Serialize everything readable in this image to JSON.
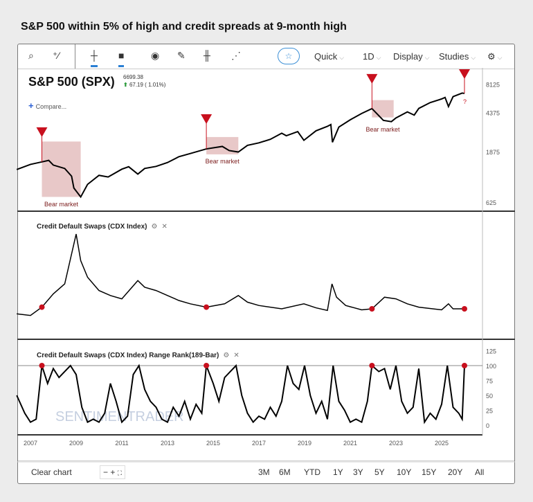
{
  "page_title": "S&P 500 within 5% of high and credit spreads at 9-month high",
  "toolbar": {
    "quick": "Quick",
    "interval": "1D",
    "display": "Display",
    "studies": "Studies"
  },
  "header": {
    "symbol": "S&P 500 (SPX)",
    "price": "6699.38",
    "change": "67.19 ( 1.01%)",
    "compare": "Compare..."
  },
  "panels": {
    "cdx_label": "Credit Default Swaps (CDX Index)",
    "rank_label": "Credit Default Swaps (CDX Index) Range Rank(189-Bar)"
  },
  "bottom": {
    "clear": "Clear chart",
    "zoom_out": "−",
    "zoom_in": "+",
    "ranges": [
      "3M",
      "6M",
      "YTD",
      "1Y",
      "3Y",
      "5Y",
      "10Y",
      "15Y",
      "20Y",
      "All"
    ]
  },
  "watermark": "SENTIMENTRADER",
  "colors": {
    "signal": "#c8101e",
    "bear": "#e8c8c8",
    "line": "#000000",
    "accent": "#2a7fd4"
  },
  "chart_data": [
    {
      "type": "line",
      "title": "S&P 500 (SPX)",
      "scale": "log",
      "yticks": [
        625,
        1875,
        4375,
        8125
      ],
      "series": [
        [
          2006.4,
          1270
        ],
        [
          2007.0,
          1420
        ],
        [
          2007.5,
          1500
        ],
        [
          2007.8,
          1550
        ],
        [
          2008.0,
          1400
        ],
        [
          2008.5,
          1300
        ],
        [
          2008.8,
          1100
        ],
        [
          2008.9,
          850
        ],
        [
          2009.2,
          700
        ],
        [
          2009.5,
          920
        ],
        [
          2010.0,
          1120
        ],
        [
          2010.4,
          1080
        ],
        [
          2011.0,
          1280
        ],
        [
          2011.3,
          1350
        ],
        [
          2011.7,
          1150
        ],
        [
          2012.0,
          1300
        ],
        [
          2012.5,
          1360
        ],
        [
          2013.0,
          1480
        ],
        [
          2013.5,
          1680
        ],
        [
          2014.0,
          1800
        ],
        [
          2014.7,
          1990
        ],
        [
          2015.4,
          2100
        ],
        [
          2015.7,
          1920
        ],
        [
          2016.1,
          1860
        ],
        [
          2016.5,
          2150
        ],
        [
          2017.0,
          2270
        ],
        [
          2017.5,
          2450
        ],
        [
          2018.0,
          2800
        ],
        [
          2018.2,
          2650
        ],
        [
          2018.7,
          2900
        ],
        [
          2018.97,
          2400
        ],
        [
          2019.5,
          2950
        ],
        [
          2020.0,
          3250
        ],
        [
          2020.15,
          3380
        ],
        [
          2020.22,
          2300
        ],
        [
          2020.5,
          3200
        ],
        [
          2021.0,
          3750
        ],
        [
          2021.5,
          4300
        ],
        [
          2021.95,
          4780
        ],
        [
          2022.45,
          3700
        ],
        [
          2022.8,
          3600
        ],
        [
          2023.0,
          3900
        ],
        [
          2023.5,
          4450
        ],
        [
          2023.8,
          4150
        ],
        [
          2024.0,
          4800
        ],
        [
          2024.5,
          5450
        ],
        [
          2025.0,
          5900
        ],
        [
          2025.15,
          6100
        ],
        [
          2025.3,
          5000
        ],
        [
          2025.5,
          6200
        ],
        [
          2025.9,
          6700
        ],
        [
          2026.0,
          6650
        ]
      ],
      "signals": [
        2007.5,
        2014.7,
        2021.95,
        2026.0
      ],
      "signal_pending_label": "?",
      "bear_markets": [
        {
          "from": 2007.5,
          "to": 2009.2,
          "label": "Bear market"
        },
        {
          "from": 2014.7,
          "to": 2016.1,
          "label": "Bear market"
        },
        {
          "from": 2021.95,
          "to": 2022.9,
          "label": "Bear market"
        }
      ]
    },
    {
      "type": "line",
      "title": "Credit Default Swaps (CDX Index)",
      "series": [
        [
          2006.4,
          40
        ],
        [
          2007.0,
          35
        ],
        [
          2007.5,
          60
        ],
        [
          2008.0,
          100
        ],
        [
          2008.5,
          130
        ],
        [
          2008.9,
          250
        ],
        [
          2009.0,
          280
        ],
        [
          2009.2,
          200
        ],
        [
          2009.5,
          150
        ],
        [
          2010.0,
          110
        ],
        [
          2010.5,
          95
        ],
        [
          2011.0,
          85
        ],
        [
          2011.7,
          140
        ],
        [
          2012.0,
          120
        ],
        [
          2012.5,
          110
        ],
        [
          2013.0,
          95
        ],
        [
          2013.5,
          80
        ],
        [
          2014.0,
          70
        ],
        [
          2014.7,
          60
        ],
        [
          2015.5,
          70
        ],
        [
          2016.1,
          95
        ],
        [
          2016.5,
          75
        ],
        [
          2017.0,
          65
        ],
        [
          2018.0,
          55
        ],
        [
          2018.97,
          70
        ],
        [
          2019.5,
          58
        ],
        [
          2020.0,
          50
        ],
        [
          2020.2,
          130
        ],
        [
          2020.4,
          90
        ],
        [
          2020.8,
          65
        ],
        [
          2021.5,
          52
        ],
        [
          2021.95,
          55
        ],
        [
          2022.5,
          90
        ],
        [
          2023.0,
          85
        ],
        [
          2023.5,
          70
        ],
        [
          2024.0,
          60
        ],
        [
          2025.0,
          52
        ],
        [
          2025.3,
          70
        ],
        [
          2025.5,
          55
        ],
        [
          2026.0,
          55
        ]
      ],
      "signals": [
        2007.5,
        2014.7,
        2021.95,
        2026.0
      ]
    },
    {
      "type": "line",
      "title": "Range Rank(189-Bar)",
      "ylim": [
        0,
        125
      ],
      "yticks": [
        0,
        25,
        50,
        75,
        100,
        125
      ],
      "threshold": 100,
      "series": [
        [
          2006.4,
          50
        ],
        [
          2006.75,
          20
        ],
        [
          2007,
          5
        ],
        [
          2007.25,
          10
        ],
        [
          2007.5,
          100
        ],
        [
          2007.75,
          70
        ],
        [
          2008,
          95
        ],
        [
          2008.25,
          80
        ],
        [
          2008.5,
          90
        ],
        [
          2008.75,
          100
        ],
        [
          2009,
          85
        ],
        [
          2009.25,
          30
        ],
        [
          2009.5,
          5
        ],
        [
          2009.75,
          10
        ],
        [
          2010,
          5
        ],
        [
          2010.25,
          20
        ],
        [
          2010.5,
          70
        ],
        [
          2010.75,
          40
        ],
        [
          2011,
          5
        ],
        [
          2011.25,
          15
        ],
        [
          2011.5,
          85
        ],
        [
          2011.75,
          100
        ],
        [
          2012,
          60
        ],
        [
          2012.25,
          40
        ],
        [
          2012.5,
          30
        ],
        [
          2012.75,
          10
        ],
        [
          2013,
          5
        ],
        [
          2013.25,
          30
        ],
        [
          2013.5,
          15
        ],
        [
          2013.75,
          40
        ],
        [
          2014,
          10
        ],
        [
          2014.25,
          35
        ],
        [
          2014.5,
          20
        ],
        [
          2014.7,
          100
        ],
        [
          2015,
          70
        ],
        [
          2015.25,
          40
        ],
        [
          2015.5,
          80
        ],
        [
          2015.75,
          90
        ],
        [
          2016,
          100
        ],
        [
          2016.25,
          50
        ],
        [
          2016.5,
          20
        ],
        [
          2016.75,
          5
        ],
        [
          2017,
          15
        ],
        [
          2017.25,
          10
        ],
        [
          2017.5,
          30
        ],
        [
          2017.75,
          15
        ],
        [
          2018,
          40
        ],
        [
          2018.25,
          100
        ],
        [
          2018.5,
          70
        ],
        [
          2018.75,
          60
        ],
        [
          2019,
          100
        ],
        [
          2019.25,
          50
        ],
        [
          2019.5,
          20
        ],
        [
          2019.75,
          40
        ],
        [
          2020,
          10
        ],
        [
          2020.25,
          100
        ],
        [
          2020.5,
          40
        ],
        [
          2020.75,
          25
        ],
        [
          2021,
          5
        ],
        [
          2021.25,
          10
        ],
        [
          2021.5,
          5
        ],
        [
          2021.75,
          40
        ],
        [
          2021.95,
          100
        ],
        [
          2022.25,
          90
        ],
        [
          2022.5,
          95
        ],
        [
          2022.75,
          60
        ],
        [
          2023,
          100
        ],
        [
          2023.25,
          40
        ],
        [
          2023.5,
          20
        ],
        [
          2023.75,
          30
        ],
        [
          2024,
          95
        ],
        [
          2024.25,
          5
        ],
        [
          2024.5,
          20
        ],
        [
          2024.75,
          10
        ],
        [
          2025,
          35
        ],
        [
          2025.25,
          100
        ],
        [
          2025.5,
          30
        ],
        [
          2025.75,
          20
        ],
        [
          2025.9,
          10
        ],
        [
          2026.0,
          100
        ]
      ],
      "signals": [
        2007.5,
        2014.7,
        2021.95,
        2026.0
      ]
    },
    {
      "xaxis_ticks": [
        "2007",
        "2009",
        "2011",
        "2013",
        "2015",
        "2017",
        "2019",
        "2021",
        "2023",
        "2025"
      ]
    }
  ]
}
